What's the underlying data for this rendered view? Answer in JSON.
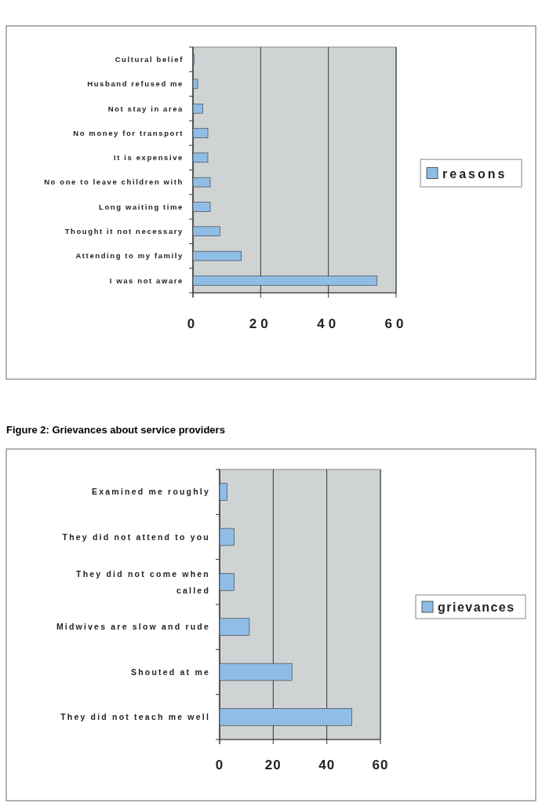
{
  "chart_data": [
    {
      "type": "bar",
      "orientation": "horizontal",
      "categories": [
        "Cultural belief",
        "Husband refused me",
        "Not stay in area",
        "No money for transport",
        "It is expensive",
        "No one to leave children with",
        "Long waiting time",
        "Thought it not necessary",
        "Attending to my family",
        "I was not aware"
      ],
      "series": [
        {
          "name": "reasons",
          "color": "#8fbde6",
          "values": [
            0.4,
            1.4,
            2.9,
            4.4,
            4.4,
            5.1,
            5.1,
            8.0,
            14.3,
            54.4
          ]
        }
      ],
      "xlim": [
        0,
        60
      ],
      "xticks": [
        0,
        20,
        40,
        60
      ],
      "grid": "x",
      "legend": "right"
    },
    {
      "type": "bar",
      "orientation": "horizontal",
      "title": "Figure 2:        Grievances about service providers",
      "categories": [
        "Examined me roughly",
        "They did not attend to you",
        "They did not come when called",
        "Midwives are slow and rude",
        "Shouted at me",
        "They did not teach me well"
      ],
      "series": [
        {
          "name": "grievances",
          "color": "#8fbde6",
          "values": [
            2.8,
            5.4,
            5.4,
            11.1,
            27,
            49.3
          ]
        }
      ],
      "xlim": [
        0,
        60
      ],
      "xticks": [
        0,
        20,
        40,
        60
      ],
      "grid": "x",
      "legend": "right"
    }
  ]
}
